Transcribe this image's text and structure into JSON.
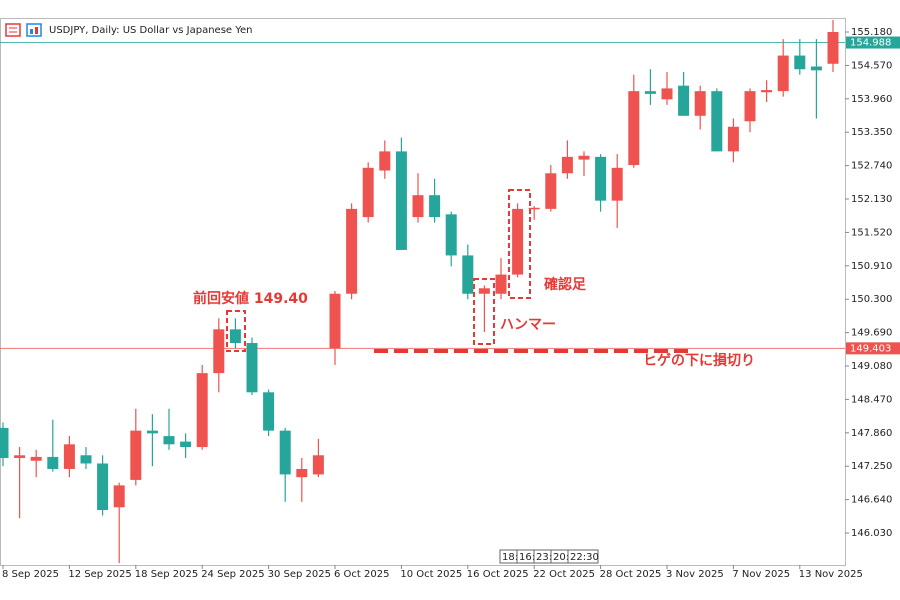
{
  "chart_data": {
    "type": "candlestick",
    "title": "USDJPY, Daily:  US Dollar vs Japanese Yen",
    "categories": [
      "8 Sep 2025",
      null,
      null,
      null,
      "12 Sep 2025",
      null,
      null,
      null,
      "18 Sep 2025",
      null,
      null,
      null,
      "24 Sep 2025",
      null,
      null,
      null,
      "30 Sep 2025",
      null,
      null,
      null,
      "6 Oct 2025",
      null,
      null,
      null,
      "10 Oct 2025",
      null,
      null,
      null,
      "16 Oct 2025",
      null,
      null,
      null,
      "22 Oct 2025",
      null,
      null,
      null,
      "28 Oct 2025",
      null,
      null,
      null,
      "3 Nov 2025",
      null,
      null,
      null,
      "7 Nov 2025",
      null,
      null,
      null,
      "13 Nov 2025",
      null,
      null
    ],
    "open": [
      147.95,
      147.4,
      147.35,
      147.42,
      147.2,
      147.45,
      147.3,
      146.5,
      147.0,
      147.9,
      147.8,
      147.7,
      147.6,
      148.95,
      149.75,
      149.5,
      148.6,
      147.9,
      147.05,
      147.1,
      149.4,
      150.4,
      151.8,
      152.65,
      153.0,
      151.8,
      152.2,
      151.85,
      151.1,
      150.4,
      150.4,
      150.75,
      151.95,
      151.95,
      152.6,
      152.85,
      152.9,
      152.1,
      152.75,
      154.1,
      153.95,
      154.2,
      153.65,
      154.1,
      153.0,
      153.55,
      154.08,
      154.1,
      154.75,
      154.55,
      154.6
    ],
    "high": [
      148.05,
      147.6,
      147.55,
      148.1,
      147.8,
      147.6,
      147.45,
      146.95,
      148.3,
      148.2,
      148.3,
      147.85,
      149.1,
      149.95,
      149.95,
      149.6,
      148.65,
      147.95,
      147.4,
      147.75,
      150.45,
      152.05,
      152.8,
      153.2,
      153.25,
      152.6,
      152.5,
      151.9,
      151.3,
      150.55,
      151.05,
      152.05,
      152.0,
      152.75,
      153.2,
      153.0,
      152.95,
      152.95,
      154.4,
      154.5,
      154.45,
      154.45,
      154.2,
      154.15,
      153.6,
      154.15,
      154.3,
      155.05,
      155.05,
      155.05,
      155.4
    ],
    "low": [
      147.25,
      146.3,
      147.05,
      147.15,
      147.05,
      147.2,
      146.35,
      145.48,
      146.9,
      147.25,
      147.55,
      147.4,
      147.55,
      148.6,
      149.4,
      148.55,
      147.8,
      146.6,
      146.6,
      147.05,
      149.1,
      150.3,
      151.7,
      152.5,
      151.2,
      151.7,
      151.7,
      150.9,
      150.3,
      149.7,
      150.3,
      150.7,
      151.75,
      151.9,
      152.5,
      152.55,
      151.9,
      151.6,
      152.7,
      153.85,
      153.85,
      153.65,
      153.4,
      153.0,
      152.8,
      153.35,
      153.9,
      154.0,
      154.4,
      153.6,
      154.45
    ],
    "close": [
      147.4,
      147.45,
      147.42,
      147.2,
      147.65,
      147.3,
      146.45,
      146.9,
      147.9,
      147.85,
      147.65,
      147.6,
      148.95,
      149.75,
      149.5,
      148.6,
      147.9,
      147.1,
      147.2,
      147.45,
      150.4,
      151.95,
      152.7,
      153.0,
      151.2,
      152.2,
      151.8,
      151.1,
      150.4,
      150.5,
      150.75,
      151.95,
      151.97,
      152.6,
      152.9,
      152.92,
      152.1,
      152.7,
      154.1,
      154.05,
      154.15,
      153.65,
      154.1,
      153.0,
      153.45,
      154.1,
      154.12,
      154.75,
      154.5,
      154.48,
      155.18
    ],
    "up_color": "#ef5350",
    "down_color": "#26a69a",
    "ylim": [
      145.446,
      155.436
    ],
    "yticks": [
      {
        "value": 155.18,
        "label": "155.180"
      },
      {
        "value": 154.57,
        "label": "154.570"
      },
      {
        "value": 153.96,
        "label": "153.960"
      },
      {
        "value": 153.35,
        "label": "153.350"
      },
      {
        "value": 152.74,
        "label": "152.740"
      },
      {
        "value": 152.13,
        "label": "152.130"
      },
      {
        "value": 151.52,
        "label": "151.520"
      },
      {
        "value": 150.91,
        "label": "150.910"
      },
      {
        "value": 150.3,
        "label": "150.300"
      },
      {
        "value": 149.69,
        "label": "149.690"
      },
      {
        "value": 149.08,
        "label": "149.080"
      },
      {
        "value": 148.47,
        "label": "148.470"
      },
      {
        "value": 147.86,
        "label": "147.860"
      },
      {
        "value": 147.25,
        "label": "147.250"
      },
      {
        "value": 146.64,
        "label": "146.640"
      },
      {
        "value": 146.03,
        "label": "146.030"
      }
    ],
    "price_lines": [
      {
        "value": 154.988,
        "color": "#26a69a"
      },
      {
        "value": 149.403,
        "color": "#ef5350"
      }
    ],
    "annotations": [
      "前回安値 149.40",
      "ハンマー",
      "確認足",
      "ヒゲの下に損切り"
    ],
    "time_boxes": [
      "18:",
      "16:",
      "23:",
      "20:",
      "22:30"
    ]
  }
}
